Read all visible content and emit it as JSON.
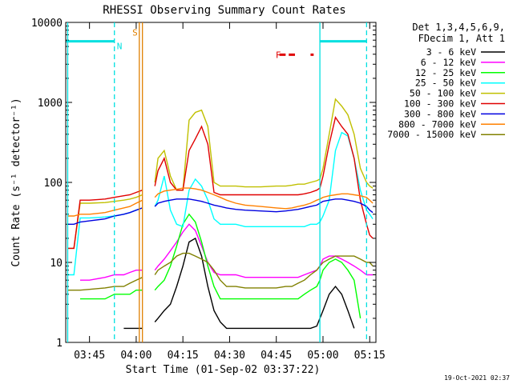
{
  "chart_data": {
    "type": "line",
    "title": "RHESSI Observing Summary Count Rates",
    "xlabel": "Start Time (01-Sep-02 03:37:22)",
    "ylabel": "Count Rate (s⁻¹ detector⁻¹)",
    "yscale": "log",
    "ylim": [
      1,
      10000
    ],
    "xlim": [
      "03:37:22",
      "05:17:00"
    ],
    "x_ticks": [
      "03:45",
      "04:00",
      "04:15",
      "04:30",
      "04:45",
      "05:00",
      "05:15"
    ],
    "y_ticks": [
      "1",
      "10",
      "100",
      "1000",
      "10000"
    ],
    "footer_timestamp": "19-Oct-2021 02:37",
    "legend_header": [
      "Det 1,3,4,5,6,9,",
      "FDecim 1, Att 1"
    ],
    "markers": [
      {
        "label": "N",
        "color": "#00e0e0"
      },
      {
        "label": "S",
        "color": "#e08000"
      },
      {
        "label": "F",
        "color": "#e00000"
      }
    ],
    "x": [
      "03:38",
      "03:40",
      "03:42",
      "03:45",
      "03:50",
      "03:53",
      "03:56",
      "03:58",
      "04:00",
      "04:02",
      "04:04",
      "04:06",
      "04:07",
      "04:09",
      "04:11",
      "04:13",
      "04:15",
      "04:17",
      "04:19",
      "04:21",
      "04:23",
      "04:25",
      "04:27",
      "04:29",
      "04:32",
      "04:35",
      "04:40",
      "04:45",
      "04:48",
      "04:50",
      "04:52",
      "04:54",
      "04:56",
      "04:58",
      "04:59",
      "05:00",
      "05:02",
      "05:04",
      "05:06",
      "05:08",
      "05:10",
      "05:12",
      "05:14",
      "05:15",
      "05:16"
    ],
    "series": [
      {
        "name": "3 - 6 keV",
        "color": "#000000",
        "values": [
          null,
          null,
          null,
          null,
          null,
          null,
          1.5,
          1.5,
          1.5,
          1.5,
          null,
          1.8,
          2,
          2.5,
          3,
          5,
          9,
          18,
          20,
          12,
          5,
          2.5,
          1.8,
          1.5,
          1.5,
          1.5,
          1.5,
          1.5,
          1.5,
          1.5,
          1.5,
          1.5,
          1.5,
          1.6,
          2,
          2.5,
          4,
          5,
          4,
          2.5,
          1.5,
          null,
          null,
          null,
          null
        ]
      },
      {
        "name": "6 - 12 keV",
        "color": "#ff00ff",
        "values": [
          null,
          null,
          6,
          6,
          6.5,
          7,
          7,
          7.5,
          8,
          8,
          null,
          8,
          9,
          11,
          14,
          18,
          24,
          30,
          25,
          16,
          10,
          7.5,
          7,
          7,
          7,
          6.5,
          6.5,
          6.5,
          6.5,
          6.5,
          6.5,
          7,
          7.5,
          8,
          9,
          11,
          12,
          12,
          11,
          10,
          9,
          8,
          7,
          7,
          7
        ]
      },
      {
        "name": "12 - 25 keV",
        "color": "#00ff00",
        "values": [
          null,
          null,
          3.5,
          3.5,
          3.5,
          4,
          4,
          4,
          4.5,
          4.5,
          null,
          4.5,
          5,
          6,
          9,
          16,
          30,
          40,
          32,
          18,
          9,
          5,
          3.5,
          3.5,
          3.5,
          3.5,
          3.5,
          3.5,
          3.5,
          3.5,
          3.5,
          4,
          4.5,
          5,
          6,
          8,
          10,
          11,
          10,
          8,
          6,
          2,
          null,
          null,
          null
        ]
      },
      {
        "name": "25 - 50 keV",
        "color": "#00ffff",
        "values": [
          7,
          7,
          36,
          36,
          37,
          38,
          40,
          42,
          45,
          48,
          null,
          50,
          60,
          120,
          45,
          30,
          28,
          80,
          110,
          90,
          60,
          35,
          30,
          30,
          30,
          28,
          28,
          28,
          28,
          28,
          28,
          28,
          30,
          30,
          32,
          38,
          60,
          250,
          420,
          380,
          200,
          80,
          45,
          40,
          35
        ]
      },
      {
        "name": "50 - 100 keV",
        "color": "#c0c000",
        "values": [
          15,
          15,
          55,
          55,
          56,
          58,
          60,
          62,
          65,
          70,
          null,
          100,
          200,
          250,
          120,
          80,
          80,
          600,
          750,
          800,
          500,
          100,
          90,
          90,
          90,
          88,
          88,
          90,
          90,
          92,
          95,
          95,
          100,
          105,
          110,
          150,
          400,
          1100,
          900,
          700,
          400,
          150,
          100,
          90,
          85
        ]
      },
      {
        "name": "100 - 300 keV",
        "color": "#e00000",
        "values": [
          15,
          15,
          60,
          60,
          62,
          65,
          68,
          70,
          75,
          80,
          null,
          90,
          140,
          200,
          100,
          80,
          80,
          250,
          350,
          500,
          300,
          75,
          70,
          70,
          70,
          70,
          70,
          70,
          70,
          70,
          70,
          72,
          75,
          80,
          85,
          120,
          300,
          650,
          500,
          400,
          200,
          60,
          30,
          22,
          20
        ]
      },
      {
        "name": "300 - 800 keV",
        "color": "#0000e0",
        "values": [
          30,
          30,
          32,
          33,
          35,
          38,
          40,
          42,
          45,
          48,
          null,
          50,
          55,
          58,
          60,
          62,
          62,
          62,
          60,
          58,
          55,
          52,
          50,
          48,
          46,
          45,
          44,
          43,
          44,
          45,
          46,
          48,
          50,
          52,
          55,
          58,
          60,
          62,
          62,
          60,
          58,
          55,
          50,
          45,
          42
        ]
      },
      {
        "name": "800 - 7000 keV",
        "color": "#ff8000",
        "values": [
          38,
          38,
          40,
          40,
          42,
          45,
          48,
          50,
          55,
          60,
          null,
          65,
          72,
          78,
          80,
          82,
          85,
          85,
          83,
          80,
          75,
          70,
          65,
          60,
          55,
          52,
          50,
          48,
          47,
          48,
          50,
          52,
          55,
          60,
          62,
          65,
          68,
          70,
          72,
          72,
          70,
          68,
          65,
          60,
          55
        ]
      },
      {
        "name": "7000 - 15000 keV",
        "color": "#808000",
        "values": [
          4.5,
          4.5,
          4.5,
          4.6,
          4.8,
          5,
          5,
          5.5,
          6,
          6.5,
          null,
          7,
          8,
          9,
          10,
          12,
          13,
          13,
          12,
          11,
          10,
          8,
          6,
          5,
          5,
          4.8,
          4.8,
          4.8,
          5,
          5,
          5.5,
          6,
          7,
          8,
          9,
          10,
          11,
          12,
          12,
          12,
          12,
          11,
          10,
          10,
          9
        ]
      }
    ]
  }
}
